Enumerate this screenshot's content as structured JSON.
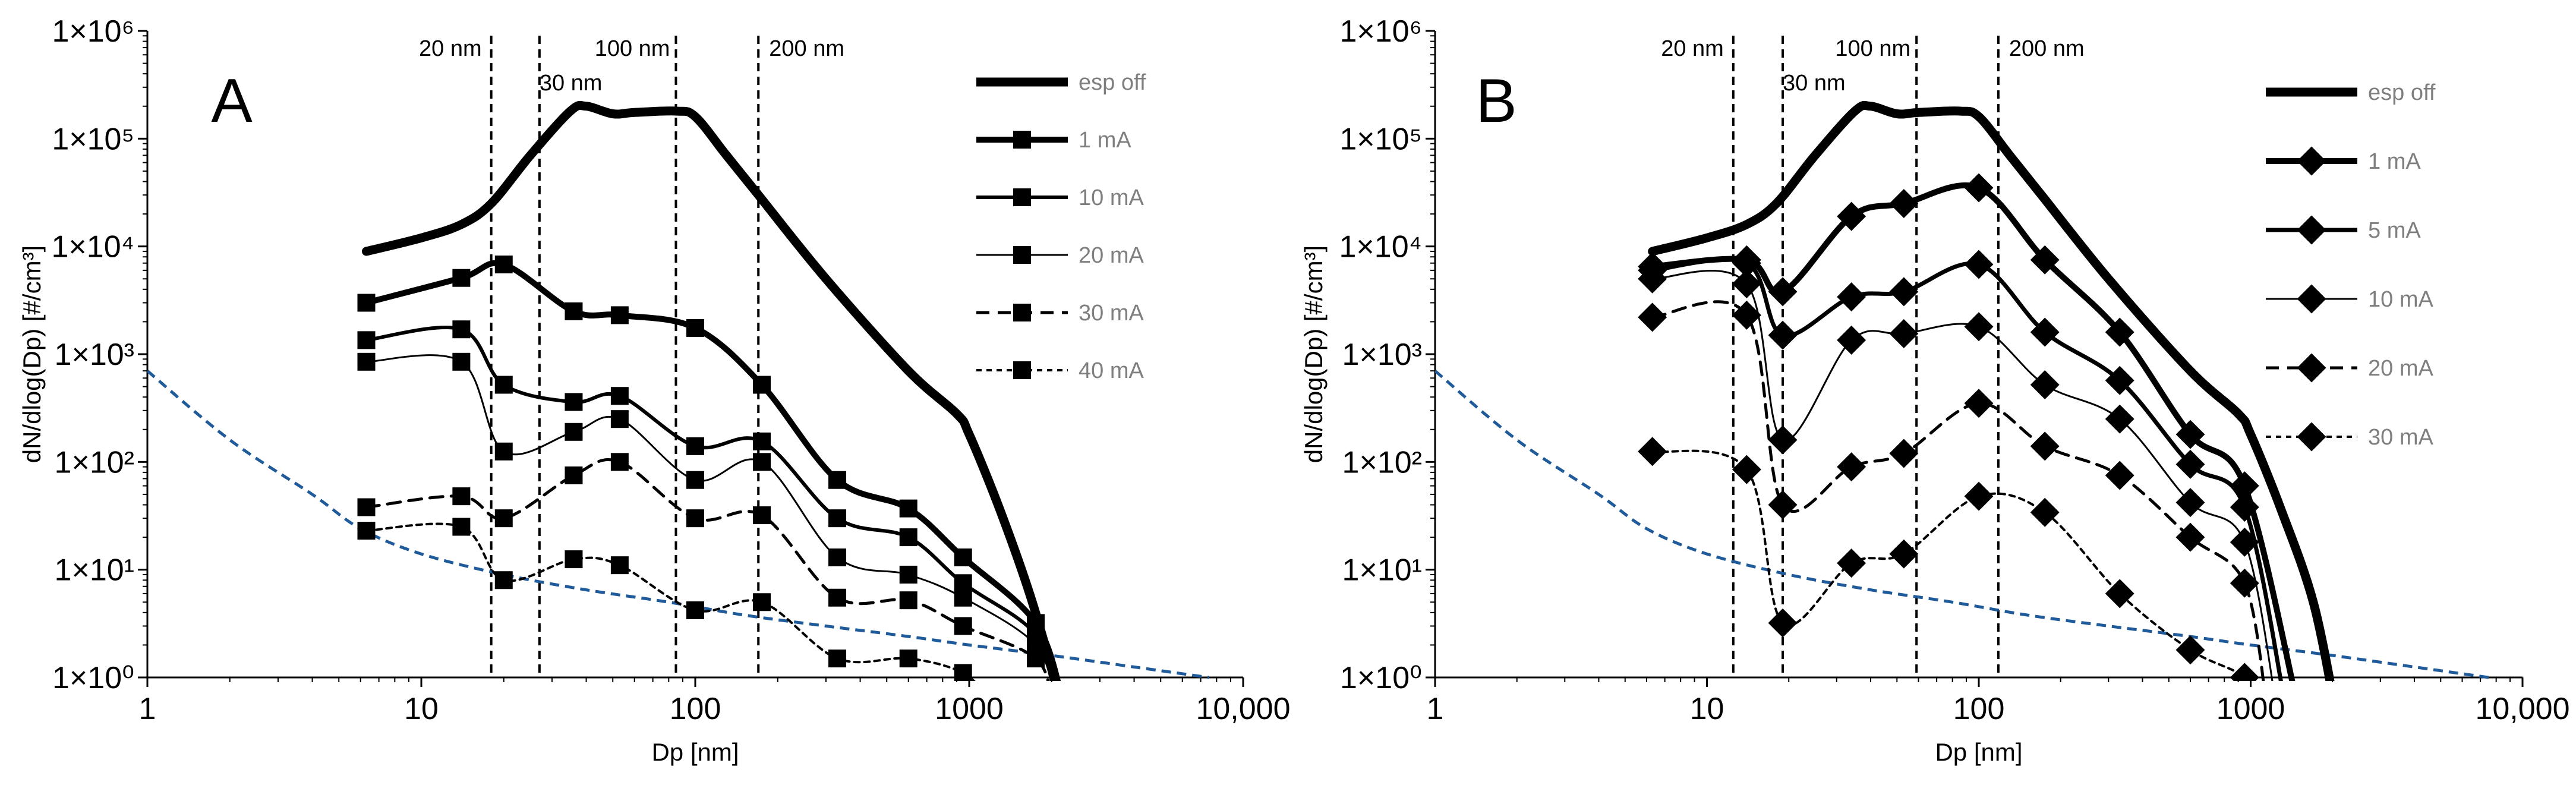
{
  "chart_data": [
    {
      "type": "line",
      "panel_label": "A",
      "xlabel": "Dp [nm]",
      "ylabel": "dN/dlog(Dp)  [#/cm³]",
      "x_scale": "log",
      "y_scale": "log",
      "xlim": [
        1,
        10000
      ],
      "ylim": [
        1,
        1000000
      ],
      "x_ticks": [
        1,
        10,
        100,
        1000,
        10000
      ],
      "x_tick_labels": [
        "1",
        "10",
        "100",
        "1000",
        "10,000"
      ],
      "y_ticks": [
        1,
        10,
        100,
        1000,
        10000,
        100000,
        1000000
      ],
      "y_tick_labels": [
        "1×10⁰",
        "1×10¹",
        "1×10²",
        "1×10³",
        "1×10⁴",
        "1×10⁵",
        "1×10⁶"
      ],
      "legend_position": "top-right",
      "reference_lines": [
        {
          "x": 18,
          "label": "20 nm"
        },
        {
          "x": 27,
          "label": "30 nm"
        },
        {
          "x": 85,
          "label": "100 nm"
        },
        {
          "x": 170,
          "label": "200 nm"
        }
      ],
      "background_curve": {
        "color": "#1f5a9a",
        "x": [
          1,
          2,
          4,
          6,
          10,
          20,
          40,
          80,
          150,
          300,
          600,
          1000,
          2000,
          4000,
          7500
        ],
        "y": [
          700,
          160,
          50,
          24,
          14,
          9,
          6.5,
          5,
          3.8,
          3,
          2.4,
          2,
          1.6,
          1.25,
          1
        ]
      },
      "series": [
        {
          "name": "esp off",
          "line_width": 15,
          "dash": "",
          "marker": "none",
          "x": [
            6.3,
            10,
            14,
            18,
            25,
            35,
            40,
            50,
            60,
            85,
            100,
            130,
            170,
            300,
            600,
            900,
            1000,
            1300,
            1700,
            2200
          ],
          "y": [
            9000,
            12000,
            16000,
            25000,
            70000,
            180000,
            200000,
            170000,
            175000,
            180000,
            160000,
            70000,
            30000,
            5000,
            700,
            280,
            180,
            35,
            5,
            0.5
          ]
        },
        {
          "name": "1 mA",
          "line_width": 10,
          "dash": "",
          "marker": "square",
          "x": [
            6.3,
            14,
            20,
            36,
            53,
            100,
            175,
            330,
            600,
            950,
            1750,
            2200
          ],
          "y": [
            3000,
            5100,
            6800,
            2500,
            2300,
            1750,
            520,
            68,
            37,
            13,
            3.2,
            0.6
          ]
        },
        {
          "name": "10 mA",
          "line_width": 6,
          "dash": "",
          "marker": "square",
          "x": [
            6.3,
            14,
            20,
            36,
            53,
            100,
            175,
            330,
            600,
            950,
            1750,
            2100
          ],
          "y": [
            1350,
            1700,
            520,
            360,
            410,
            140,
            155,
            30,
            20,
            7.5,
            2.5,
            0.6
          ]
        },
        {
          "name": "20 mA",
          "line_width": 3,
          "dash": "",
          "marker": "square",
          "x": [
            6.3,
            14,
            20,
            36,
            53,
            100,
            175,
            330,
            600,
            950,
            1750,
            2050
          ],
          "y": [
            850,
            850,
            125,
            190,
            250,
            68,
            100,
            13,
            9,
            5.5,
            2,
            0.6
          ]
        },
        {
          "name": "30 mA",
          "line_width": 5,
          "dash": "22 14",
          "marker": "square",
          "x": [
            6.3,
            14,
            20,
            36,
            53,
            100,
            175,
            330,
            600,
            950,
            1750,
            2000
          ],
          "y": [
            38,
            48,
            30,
            75,
            100,
            30,
            32,
            5.5,
            5.2,
            3,
            1.5,
            0.6
          ]
        },
        {
          "name": "40 mA",
          "line_width": 4,
          "dash": "9 8",
          "marker": "square",
          "x": [
            6.3,
            14,
            20,
            36,
            53,
            100,
            175,
            330,
            600,
            950,
            1200
          ],
          "y": [
            23,
            25,
            8,
            12.5,
            11,
            4.2,
            5,
            1.5,
            1.5,
            1.1,
            0.6
          ]
        }
      ]
    },
    {
      "type": "line",
      "panel_label": "B",
      "xlabel": "Dp [nm]",
      "ylabel": "dN/dlog(Dp)  [#/cm³]",
      "x_scale": "log",
      "y_scale": "log",
      "xlim": [
        1,
        10000
      ],
      "ylim": [
        1,
        1000000
      ],
      "x_ticks": [
        1,
        10,
        100,
        1000,
        10000
      ],
      "x_tick_labels": [
        "1",
        "10",
        "100",
        "1000",
        "10,000"
      ],
      "y_ticks": [
        1,
        10,
        100,
        1000,
        10000,
        100000,
        1000000
      ],
      "y_tick_labels": [
        "1×10⁰",
        "1×10¹",
        "1×10²",
        "1×10³",
        "1×10⁴",
        "1×10⁵",
        "1×10⁶"
      ],
      "legend_position": "top-right",
      "reference_lines": [
        {
          "x": 12.5,
          "label": "20 nm"
        },
        {
          "x": 19,
          "label": "30 nm"
        },
        {
          "x": 59,
          "label": "100 nm"
        },
        {
          "x": 118,
          "label": "200 nm"
        }
      ],
      "background_curve": {
        "color": "#1f5a9a",
        "x": [
          1,
          2,
          4,
          6,
          10,
          20,
          40,
          80,
          150,
          300,
          600,
          1000,
          2000,
          4000,
          7500
        ],
        "y": [
          700,
          160,
          50,
          24,
          14,
          9,
          6.5,
          5,
          3.8,
          3,
          2.4,
          2,
          1.6,
          1.25,
          1
        ]
      },
      "series": [
        {
          "name": "esp off",
          "line_width": 15,
          "dash": "",
          "marker": "none",
          "x": [
            6.3,
            10,
            14,
            18,
            25,
            35,
            40,
            50,
            60,
            85,
            100,
            130,
            170,
            300,
            600,
            900,
            1000,
            1300,
            1700,
            2050
          ],
          "y": [
            9000,
            12000,
            16000,
            25000,
            70000,
            180000,
            200000,
            170000,
            175000,
            180000,
            160000,
            70000,
            30000,
            5000,
            700,
            280,
            180,
            35,
            5,
            0.5
          ]
        },
        {
          "name": "1 mA",
          "line_width": 10,
          "dash": "",
          "marker": "diamond",
          "x": [
            6.3,
            14,
            19,
            34,
            53,
            100,
            175,
            330,
            600,
            950,
            1500
          ],
          "y": [
            6500,
            7500,
            3800,
            19000,
            25000,
            35000,
            7500,
            1600,
            180,
            60,
            0.5
          ]
        },
        {
          "name": "5 mA",
          "line_width": 7,
          "dash": "",
          "marker": "diamond",
          "x": [
            6.3,
            14,
            19,
            34,
            53,
            100,
            175,
            330,
            600,
            950,
            1350
          ],
          "y": [
            6000,
            7000,
            1500,
            3400,
            3800,
            6800,
            1600,
            570,
            95,
            38,
            0.5
          ]
        },
        {
          "name": "10 mA",
          "line_width": 3,
          "dash": "",
          "marker": "diamond",
          "x": [
            6.3,
            14,
            19,
            34,
            53,
            100,
            175,
            330,
            600,
            950,
            1250
          ],
          "y": [
            5000,
            4500,
            160,
            1350,
            1550,
            1800,
            520,
            250,
            42,
            18,
            0.5
          ]
        },
        {
          "name": "20 mA",
          "line_width": 5,
          "dash": "22 14",
          "marker": "diamond",
          "x": [
            6.3,
            14,
            19,
            34,
            53,
            100,
            175,
            330,
            600,
            950,
            1150
          ],
          "y": [
            2200,
            2300,
            40,
            90,
            120,
            350,
            140,
            75,
            20,
            7.5,
            0.5
          ]
        },
        {
          "name": "30 mA",
          "line_width": 4,
          "dash": "9 8",
          "marker": "diamond",
          "x": [
            6.3,
            14,
            19,
            34,
            53,
            100,
            175,
            330,
            600,
            950,
            1050
          ],
          "y": [
            125,
            85,
            3.2,
            11.5,
            14,
            48,
            34,
            6,
            1.8,
            1,
            0.5
          ]
        }
      ]
    }
  ]
}
